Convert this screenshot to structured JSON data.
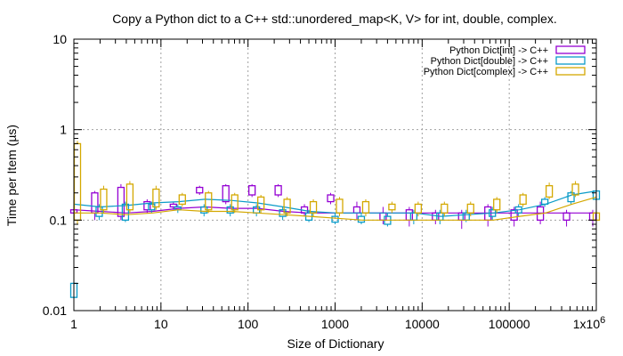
{
  "chart_data": {
    "type": "line",
    "title": "Copy a Python dict to a C++ std::unordered_map<K, V> for int, double, complex.",
    "xlabel": "Size of Dictionary",
    "ylabel": "Time per Item (µs)",
    "x_scale": "log",
    "y_scale": "log",
    "xlim": [
      1,
      1000000
    ],
    "ylim": [
      0.01,
      10
    ],
    "grid": true,
    "legend_position": "top-right",
    "x_tick_labels": [
      {
        "value": 1,
        "label": "1"
      },
      {
        "value": 10,
        "label": "10"
      },
      {
        "value": 100,
        "label": "100"
      },
      {
        "value": 1000,
        "label": "1000"
      },
      {
        "value": 10000,
        "label": "10000"
      },
      {
        "value": 100000,
        "label": "100000"
      },
      {
        "value": 1000000,
        "label": "1x10^6"
      }
    ],
    "y_tick_labels": [
      {
        "value": 0.01,
        "label": "0.01"
      },
      {
        "value": 0.1,
        "label": "0.1"
      },
      {
        "value": 1,
        "label": "1"
      },
      {
        "value": 10,
        "label": "10"
      }
    ],
    "series": [
      {
        "name": "Python Dict[int] -> C++",
        "color": "#9400d3",
        "x": [
          1,
          2,
          4,
          8,
          16,
          32,
          64,
          128,
          256,
          512,
          1024,
          2048,
          4096,
          8192,
          16384,
          32768,
          65536,
          131072,
          262144,
          524288,
          1048576
        ],
        "y": [
          0.13,
          0.125,
          0.12,
          0.125,
          0.135,
          0.14,
          0.135,
          0.135,
          0.125,
          0.12,
          0.12,
          0.12,
          0.12,
          0.12,
          0.12,
          0.12,
          0.12,
          0.12,
          0.12,
          0.12,
          0.12
        ],
        "box_low": [
          0.12,
          0.12,
          0.11,
          0.13,
          0.14,
          0.2,
          0.16,
          0.19,
          0.19,
          0.12,
          0.16,
          0.12,
          0.1,
          0.1,
          0.1,
          0.1,
          0.1,
          0.1,
          0.1,
          0.1,
          0.1
        ],
        "box_high": [
          0.13,
          0.2,
          0.23,
          0.16,
          0.15,
          0.23,
          0.24,
          0.24,
          0.24,
          0.14,
          0.19,
          0.14,
          0.12,
          0.13,
          0.12,
          0.12,
          0.14,
          0.13,
          0.14,
          0.12,
          0.12
        ],
        "whisker_low": [
          0.12,
          0.1,
          0.1,
          0.12,
          0.13,
          0.19,
          0.15,
          0.18,
          0.18,
          0.11,
          0.15,
          0.1,
          0.09,
          0.085,
          0.09,
          0.08,
          0.085,
          0.085,
          0.09,
          0.085,
          0.085
        ],
        "whisker_high": [
          0.14,
          0.21,
          0.25,
          0.17,
          0.16,
          0.24,
          0.25,
          0.25,
          0.25,
          0.15,
          0.2,
          0.16,
          0.14,
          0.14,
          0.13,
          0.13,
          0.15,
          0.14,
          0.16,
          0.13,
          0.13
        ]
      },
      {
        "name": "Python Dict[double] -> C++",
        "color": "#0a9bc8",
        "x": [
          1,
          2,
          4,
          8,
          16,
          32,
          64,
          128,
          256,
          512,
          1024,
          2048,
          4096,
          8192,
          16384,
          32768,
          65536,
          131072,
          262144,
          524288,
          1048576
        ],
        "y": [
          0.15,
          0.14,
          0.145,
          0.155,
          0.16,
          0.17,
          0.165,
          0.155,
          0.14,
          0.125,
          0.12,
          0.12,
          0.12,
          0.12,
          0.11,
          0.115,
          0.12,
          0.13,
          0.15,
          0.19,
          0.21
        ],
        "box_low": [
          0.014,
          0.11,
          0.1,
          0.13,
          0.13,
          0.12,
          0.12,
          0.12,
          0.11,
          0.1,
          0.095,
          0.095,
          0.09,
          0.1,
          0.1,
          0.1,
          0.11,
          0.12,
          0.15,
          0.16,
          0.17
        ],
        "box_high": [
          0.02,
          0.14,
          0.15,
          0.15,
          0.14,
          0.14,
          0.14,
          0.14,
          0.13,
          0.12,
          0.11,
          0.11,
          0.11,
          0.12,
          0.12,
          0.12,
          0.13,
          0.14,
          0.17,
          0.2,
          0.21
        ],
        "whisker_low": [
          0.013,
          0.1,
          0.095,
          0.12,
          0.12,
          0.11,
          0.11,
          0.11,
          0.1,
          0.095,
          0.09,
          0.09,
          0.085,
          0.09,
          0.09,
          0.095,
          0.1,
          0.11,
          0.14,
          0.15,
          0.16
        ],
        "whisker_high": [
          0.025,
          0.15,
          0.16,
          0.16,
          0.15,
          0.15,
          0.15,
          0.15,
          0.14,
          0.13,
          0.12,
          0.12,
          0.12,
          0.13,
          0.13,
          0.13,
          0.14,
          0.15,
          0.18,
          0.21,
          0.22
        ]
      },
      {
        "name": "Python Dict[complex] -> C++",
        "color": "#d4a800",
        "x": [
          1,
          2,
          4,
          8,
          16,
          32,
          64,
          128,
          256,
          512,
          1024,
          2048,
          4096,
          8192,
          16384,
          32768,
          65536,
          131072,
          262144,
          524288,
          1048576
        ],
        "y": [
          0.12,
          0.12,
          0.115,
          0.12,
          0.13,
          0.125,
          0.125,
          0.12,
          0.115,
          0.11,
          0.105,
          0.1,
          0.1,
          0.1,
          0.1,
          0.1,
          0.1,
          0.11,
          0.12,
          0.15,
          0.18
        ],
        "box_low": [
          0.1,
          0.13,
          0.13,
          0.14,
          0.15,
          0.13,
          0.13,
          0.13,
          0.12,
          0.12,
          0.12,
          0.12,
          0.13,
          0.12,
          0.12,
          0.12,
          0.13,
          0.15,
          0.18,
          0.19,
          0.1
        ],
        "box_high": [
          0.7,
          0.22,
          0.25,
          0.22,
          0.19,
          0.2,
          0.19,
          0.18,
          0.17,
          0.16,
          0.17,
          0.16,
          0.15,
          0.15,
          0.15,
          0.15,
          0.17,
          0.19,
          0.24,
          0.25,
          0.12
        ],
        "whisker_low": [
          0.09,
          0.12,
          0.12,
          0.13,
          0.14,
          0.12,
          0.12,
          0.12,
          0.11,
          0.11,
          0.11,
          0.11,
          0.12,
          0.11,
          0.11,
          0.11,
          0.12,
          0.14,
          0.17,
          0.18,
          0.09
        ],
        "whisker_high": [
          0.75,
          0.24,
          0.27,
          0.24,
          0.2,
          0.21,
          0.2,
          0.19,
          0.18,
          0.17,
          0.18,
          0.17,
          0.16,
          0.16,
          0.16,
          0.16,
          0.18,
          0.2,
          0.26,
          0.27,
          0.13
        ]
      }
    ]
  }
}
